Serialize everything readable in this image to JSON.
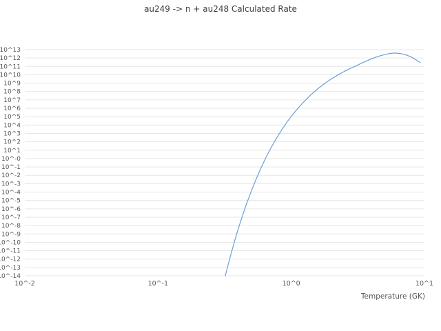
{
  "chart_data": {
    "type": "line",
    "title": "au249 -> n + au248 Calculated Rate",
    "xlabel": "Temperature (GK)",
    "ylabel": "",
    "x_scale": "log",
    "y_scale": "log",
    "xlim": [
      0.01,
      10
    ],
    "ylim_exponents": [
      -14,
      13
    ],
    "grid": "horizontal",
    "legend": "none",
    "x_tick_labels": [
      "10^-2",
      "10^-1",
      "10^0",
      "10^1"
    ],
    "x_tick_values": [
      0.01,
      0.1,
      1,
      10
    ],
    "y_tick_labels": [
      "10^13",
      "10^12",
      "10^11",
      "10^10",
      "10^9",
      "10^8",
      "10^7",
      "10^6",
      "10^5",
      "10^4",
      "10^3",
      "10^2",
      "10^1",
      "10^-0",
      "10^-1",
      "10^-2",
      "10^-3",
      "10^-4",
      "10^-5",
      "10^-6",
      "10^-7",
      "10^-8",
      "10^-9",
      "10^-10",
      "10^-11",
      "10^-12",
      "10^-13",
      "10^-14"
    ],
    "y_tick_exponents": [
      13,
      12,
      11,
      10,
      9,
      8,
      7,
      6,
      5,
      4,
      3,
      2,
      1,
      0,
      -1,
      -2,
      -3,
      -4,
      -5,
      -6,
      -7,
      -8,
      -9,
      -10,
      -11,
      -12,
      -13,
      -14
    ],
    "series": [
      {
        "name": "calculated-rate",
        "x_temperature_GK": [
          0.31,
          0.32,
          0.34,
          0.36,
          0.38,
          0.4,
          0.43,
          0.46,
          0.5,
          0.55,
          0.6,
          0.65,
          0.7,
          0.75,
          0.8,
          0.85,
          0.9,
          0.95,
          1.0,
          1.1,
          1.2,
          1.4,
          1.6,
          1.8,
          2.0,
          2.25,
          2.5,
          2.75,
          3.0,
          3.5,
          4.0,
          4.5,
          5.0,
          5.5,
          6.0,
          6.5,
          7.0,
          7.5,
          8.0,
          8.5,
          9.0,
          9.3
        ],
        "log10_rate": [
          -14.9,
          -14.0,
          -12.35,
          -10.89,
          -9.58,
          -8.4,
          -6.84,
          -5.48,
          -3.93,
          -2.3,
          -0.94,
          0.21,
          1.19,
          2.05,
          2.79,
          3.45,
          4.03,
          4.56,
          5.03,
          5.84,
          6.52,
          7.59,
          8.39,
          9.01,
          9.51,
          10.0,
          10.4,
          10.73,
          11.0,
          11.5,
          11.9,
          12.2,
          12.4,
          12.55,
          12.6,
          12.55,
          12.45,
          12.3,
          12.1,
          11.85,
          11.6,
          11.45
        ]
      }
    ],
    "colors": {
      "line": "#6b9fd6",
      "grid": "#e6e6e6",
      "tick_text": "#555555",
      "title_text": "#3c3c3c",
      "background": "#ffffff"
    }
  }
}
